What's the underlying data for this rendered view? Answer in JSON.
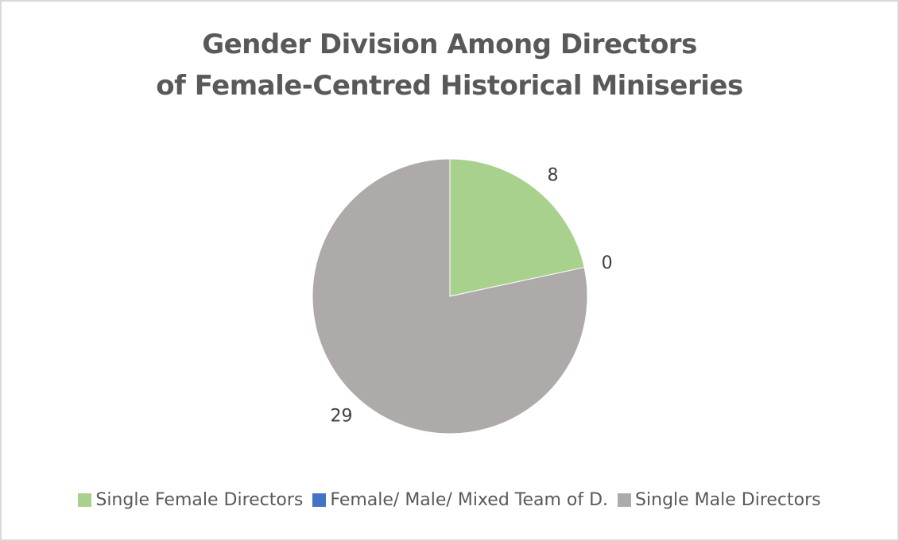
{
  "chart_data": {
    "type": "pie",
    "title": [
      "Gender Division Among Directors",
      "of Female-Centred Historical Miniseries"
    ],
    "categories": [
      "Single Female Directors",
      "Female/ Male/ Mixed Team of D.",
      "Single Male Directors"
    ],
    "values": [
      8,
      0,
      29
    ],
    "data_labels": [
      "8",
      "0",
      "29"
    ],
    "colors": [
      "#a9d18e",
      "#4472c4",
      "#aeaaaa"
    ],
    "legend_position": "bottom"
  }
}
